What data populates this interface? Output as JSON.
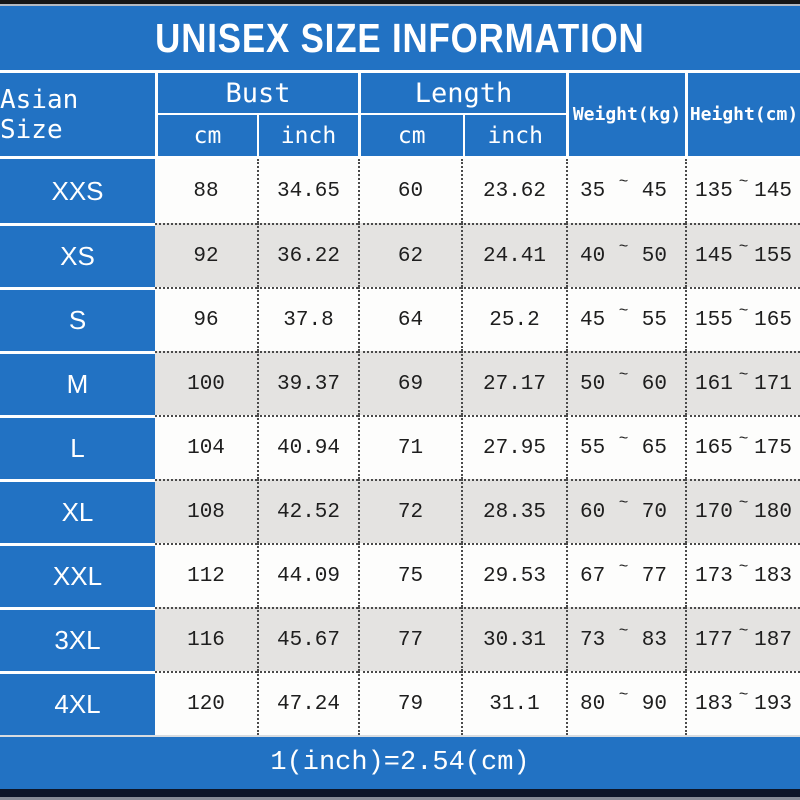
{
  "chart_data": {
    "type": "table",
    "title": "UNISEX SIZE INFORMATION",
    "header": {
      "size_col": "Asian Size",
      "groups": [
        {
          "label": "Bust",
          "sub": [
            "cm",
            "inch"
          ]
        },
        {
          "label": "Length",
          "sub": [
            "cm",
            "inch"
          ]
        }
      ],
      "weight_col": "Weight(kg)",
      "height_col": "Height(cm)"
    },
    "tilde": "~",
    "rows": [
      {
        "size": "XXS",
        "bust_cm": "88",
        "bust_inch": "34.65",
        "length_cm": "60",
        "length_inch": "23.62",
        "weight": [
          "35",
          "45"
        ],
        "height": [
          "135",
          "145"
        ]
      },
      {
        "size": "XS",
        "bust_cm": "92",
        "bust_inch": "36.22",
        "length_cm": "62",
        "length_inch": "24.41",
        "weight": [
          "40",
          "50"
        ],
        "height": [
          "145",
          "155"
        ]
      },
      {
        "size": "S",
        "bust_cm": "96",
        "bust_inch": "37.8",
        "length_cm": "64",
        "length_inch": "25.2",
        "weight": [
          "45",
          "55"
        ],
        "height": [
          "155",
          "165"
        ]
      },
      {
        "size": "M",
        "bust_cm": "100",
        "bust_inch": "39.37",
        "length_cm": "69",
        "length_inch": "27.17",
        "weight": [
          "50",
          "60"
        ],
        "height": [
          "161",
          "171"
        ]
      },
      {
        "size": "L",
        "bust_cm": "104",
        "bust_inch": "40.94",
        "length_cm": "71",
        "length_inch": "27.95",
        "weight": [
          "55",
          "65"
        ],
        "height": [
          "165",
          "175"
        ]
      },
      {
        "size": "XL",
        "bust_cm": "108",
        "bust_inch": "42.52",
        "length_cm": "72",
        "length_inch": "28.35",
        "weight": [
          "60",
          "70"
        ],
        "height": [
          "170",
          "180"
        ]
      },
      {
        "size": "XXL",
        "bust_cm": "112",
        "bust_inch": "44.09",
        "length_cm": "75",
        "length_inch": "29.53",
        "weight": [
          "67",
          "77"
        ],
        "height": [
          "173",
          "183"
        ]
      },
      {
        "size": "3XL",
        "bust_cm": "116",
        "bust_inch": "45.67",
        "length_cm": "77",
        "length_inch": "30.31",
        "weight": [
          "73",
          "83"
        ],
        "height": [
          "177",
          "187"
        ]
      },
      {
        "size": "4XL",
        "bust_cm": "120",
        "bust_inch": "47.24",
        "length_cm": "79",
        "length_inch": "31.1",
        "weight": [
          "80",
          "90"
        ],
        "height": [
          "183",
          "193"
        ]
      }
    ],
    "note": "1(inch)=2.54(cm)"
  },
  "colors": {
    "table_blue": "#2272c3",
    "row_white": "#fdfdfc",
    "row_gray": "#e4e3e1",
    "text_dark": "#1e1e1e",
    "header_text": "#ffffff",
    "top_bar_black": "#161616",
    "bottom_bar_navy": "#0c1528"
  }
}
